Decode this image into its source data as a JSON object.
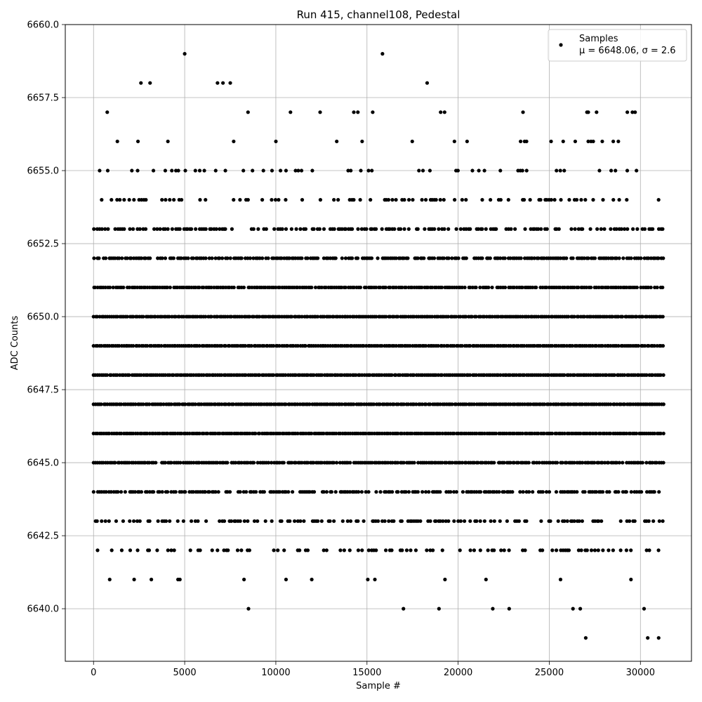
{
  "chart_data": {
    "type": "scatter",
    "title": "Run 415, channel108, Pedestal",
    "xlabel": "Sample #",
    "ylabel": "ADC Counts",
    "xlim": [
      -1550,
      32800
    ],
    "ylim": [
      6638.2,
      6660.0
    ],
    "xticks": [
      0,
      5000,
      10000,
      15000,
      20000,
      25000,
      30000
    ],
    "yticks": [
      6640.0,
      6642.5,
      6645.0,
      6647.5,
      6650.0,
      6652.5,
      6655.0,
      6657.5,
      6660.0
    ],
    "xtick_labels": [
      "0",
      "5000",
      "10000",
      "15000",
      "20000",
      "25000",
      "30000"
    ],
    "ytick_labels": [
      "6640.0",
      "6642.5",
      "6645.0",
      "6647.5",
      "6650.0",
      "6652.5",
      "6655.0",
      "6657.5",
      "6660.0"
    ],
    "grid": true,
    "legend_position": "top-right",
    "series": [
      {
        "name": "Samples",
        "color": "#000000",
        "marker": "circle",
        "x_range": [
          0,
          31330
        ],
        "y_levels": [
          6639,
          6640,
          6641,
          6642,
          6643,
          6644,
          6645,
          6646,
          6647,
          6648,
          6649,
          6650,
          6651,
          6652,
          6653,
          6654,
          6655,
          6656,
          6657,
          6658,
          6659
        ],
        "level_occupancy": [
          0.001,
          0.004,
          0.05,
          0.28,
          0.52,
          0.72,
          0.94,
          1.0,
          1.0,
          1.0,
          1.0,
          1.0,
          0.94,
          0.82,
          0.55,
          0.32,
          0.16,
          0.07,
          0.035,
          0.01,
          0.004
        ],
        "sample_points": [
          [
            5000,
            6659
          ],
          [
            15850,
            6659
          ],
          [
            2600,
            6658
          ],
          [
            3100,
            6658
          ],
          [
            6800,
            6658
          ],
          [
            7100,
            6658
          ],
          [
            7500,
            6658
          ],
          [
            18300,
            6658
          ],
          [
            8500,
            6640
          ],
          [
            17000,
            6640
          ],
          [
            18950,
            6640
          ],
          [
            21900,
            6640
          ],
          [
            22800,
            6640
          ],
          [
            26300,
            6640
          ],
          [
            26700,
            6640
          ],
          [
            30200,
            6640
          ],
          [
            27000,
            6639
          ],
          [
            30400,
            6639
          ],
          [
            31000,
            6639
          ]
        ]
      }
    ],
    "legend": {
      "label": "Samples",
      "stats": "μ = 6648.06, σ = 2.6"
    }
  }
}
